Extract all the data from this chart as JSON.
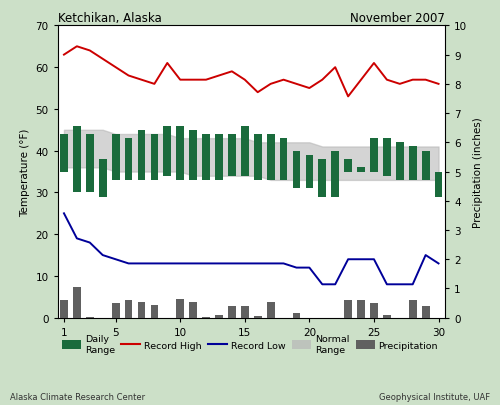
{
  "days": [
    1,
    2,
    3,
    4,
    5,
    6,
    7,
    8,
    9,
    10,
    11,
    12,
    13,
    14,
    15,
    16,
    17,
    18,
    19,
    20,
    21,
    22,
    23,
    24,
    25,
    26,
    27,
    28,
    29,
    30
  ],
  "record_high": [
    63,
    65,
    64,
    62,
    60,
    58,
    57,
    56,
    61,
    57,
    57,
    57,
    58,
    59,
    57,
    54,
    56,
    57,
    56,
    55,
    57,
    60,
    53,
    57,
    61,
    57,
    56,
    57,
    57,
    56
  ],
  "record_low": [
    25,
    19,
    18,
    15,
    14,
    13,
    13,
    13,
    13,
    13,
    13,
    13,
    13,
    13,
    13,
    13,
    13,
    13,
    12,
    12,
    8,
    8,
    14,
    14,
    14,
    8,
    8,
    8,
    15,
    13
  ],
  "daily_high": [
    44,
    46,
    44,
    38,
    44,
    43,
    45,
    44,
    46,
    46,
    45,
    44,
    44,
    44,
    46,
    44,
    44,
    43,
    40,
    39,
    38,
    40,
    38,
    36,
    43,
    43,
    42,
    41,
    40,
    35
  ],
  "daily_low": [
    35,
    30,
    30,
    29,
    33,
    33,
    33,
    33,
    34,
    33,
    33,
    33,
    33,
    34,
    34,
    33,
    33,
    33,
    31,
    31,
    29,
    29,
    35,
    35,
    35,
    34,
    33,
    33,
    33,
    29
  ],
  "normal_high": [
    45,
    45,
    45,
    45,
    44,
    44,
    44,
    44,
    44,
    43,
    43,
    43,
    43,
    43,
    43,
    42,
    42,
    42,
    42,
    42,
    41,
    41,
    41,
    41,
    41,
    41,
    41,
    41,
    41,
    41
  ],
  "normal_low": [
    36,
    36,
    36,
    36,
    35,
    35,
    35,
    35,
    35,
    35,
    34,
    34,
    34,
    34,
    34,
    34,
    33,
    33,
    33,
    33,
    33,
    33,
    33,
    33,
    33,
    33,
    33,
    33,
    33,
    33
  ],
  "precip": [
    0.6,
    1.05,
    0.02,
    0.0,
    0.5,
    0.6,
    0.55,
    0.45,
    0.0,
    0.65,
    0.55,
    0.02,
    0.1,
    0.4,
    0.4,
    0.05,
    0.55,
    0.0,
    0.15,
    0.0,
    0.0,
    0.0,
    0.6,
    0.6,
    0.5,
    0.1,
    0.0,
    0.6,
    0.4,
    0.0
  ],
  "bg_color": "#cce0c8",
  "plot_bg": "#ffffff",
  "record_high_color": "#cc0000",
  "record_low_color": "#000099",
  "daily_range_color": "#1a6b3c",
  "normal_range_color": "#b8b8b8",
  "precip_color": "#606060",
  "title_left": "Ketchikan, Alaska",
  "title_right": "November 2007",
  "ylabel_left": "Temperature (°F)",
  "ylabel_right": "Precipitation (inches)",
  "ylim_left": [
    0,
    70
  ],
  "ylim_right": [
    0,
    10
  ],
  "yticks_left": [
    0,
    10,
    20,
    30,
    40,
    50,
    60,
    70
  ],
  "yticks_right": [
    0,
    1,
    2,
    3,
    4,
    5,
    6,
    7,
    8,
    9,
    10
  ],
  "footer_left": "Alaska Climate Research Center",
  "footer_right": "Geophysical Institute, UAF"
}
